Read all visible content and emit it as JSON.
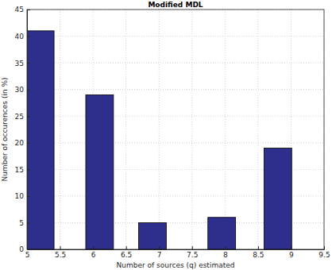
{
  "chart_data": {
    "type": "bar",
    "title": "Modified MDL",
    "x_label": "Number of sources (q) estimated",
    "y_label": "Number of occurences (in %)",
    "x": [
      5.2,
      6.1,
      6.9,
      7.95,
      8.8
    ],
    "values": [
      41,
      29,
      5,
      6,
      19
    ],
    "color": "#2e2e8c",
    "xlim": [
      5,
      9.5
    ],
    "xticks": [
      5,
      5.5,
      6,
      6.5,
      7,
      7.5,
      8,
      8.5,
      9,
      9.5
    ],
    "ylim": [
      0,
      45
    ],
    "yticks": [
      0,
      5,
      10,
      15,
      20,
      25,
      30,
      35,
      40,
      45
    ],
    "grid": true
  }
}
